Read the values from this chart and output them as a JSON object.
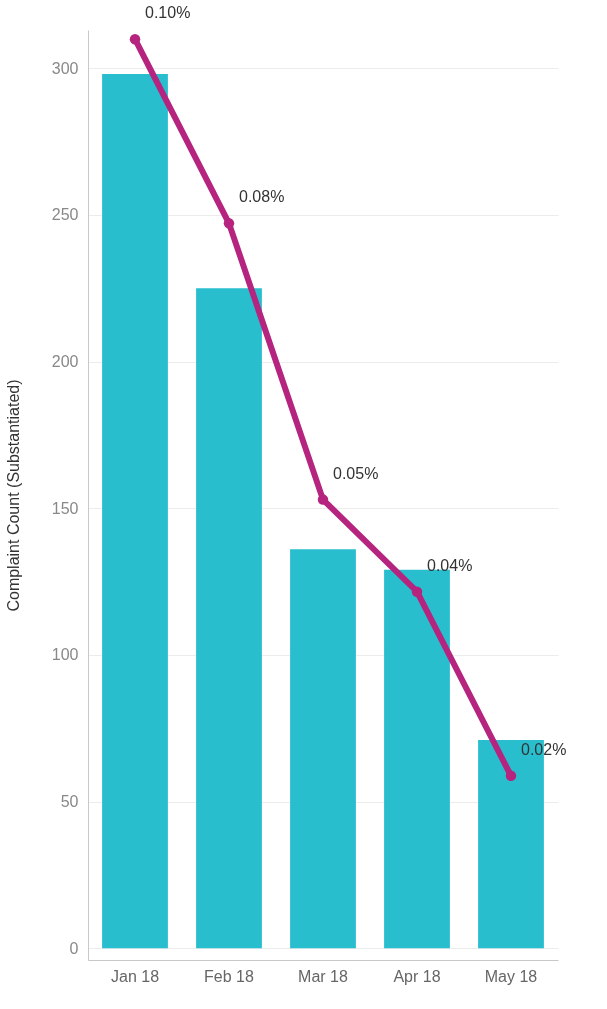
{
  "chart_data": {
    "type": "bar",
    "ylabel": "Complaint Count (Substantiated)",
    "categories": [
      "Jan 18",
      "Feb 18",
      "Mar 18",
      "Apr 18",
      "May 18"
    ],
    "series": [
      {
        "color": "#29bece",
        "values": [
          298,
          225,
          136,
          129,
          71
        ]
      },
      {
        "type": "line",
        "axis": "y2",
        "color": "#b5247e",
        "marker": "circle",
        "values": [
          0.1,
          0.08,
          0.05,
          0.04,
          0.02
        ],
        "value_labels": [
          "0.10%",
          "0.08%",
          "0.05%",
          "0.04%",
          "0.02%"
        ]
      }
    ],
    "ylim": [
      -4,
      313
    ],
    "yticks": [
      0,
      50,
      100,
      150,
      200,
      250,
      300
    ],
    "y2lim": [
      0,
      0.101
    ],
    "tick_labels": "xy",
    "grid": "y"
  }
}
